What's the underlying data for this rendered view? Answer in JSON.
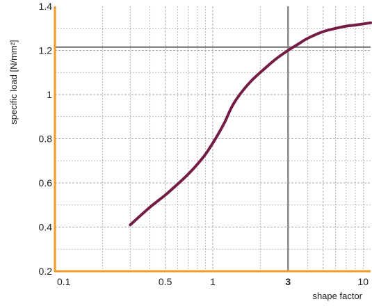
{
  "chart_data": {
    "type": "line",
    "xscale": "log",
    "yscale": "linear",
    "xlim": [
      0.1,
      10
    ],
    "ylim": [
      0.2,
      1.4
    ],
    "xlabel": "shape factor",
    "ylabel": "specific load [N/mm²]",
    "x_ticks": [
      {
        "value": 0.1,
        "label": "0.1",
        "bold": false
      },
      {
        "value": 0.5,
        "label": "0.5",
        "bold": false
      },
      {
        "value": 1,
        "label": "1",
        "bold": false
      },
      {
        "value": 3,
        "label": "3",
        "bold": true
      },
      {
        "value": 10,
        "label": "10",
        "bold": false
      }
    ],
    "y_ticks": [
      {
        "value": 0.2,
        "label": "0.2"
      },
      {
        "value": 0.4,
        "label": "0.4"
      },
      {
        "value": 0.6,
        "label": "0.6"
      },
      {
        "value": 0.8,
        "label": "0.8"
      },
      {
        "value": 1,
        "label": "1"
      },
      {
        "value": 1.2,
        "label": "1.2"
      },
      {
        "value": 1.4,
        "label": "1.4"
      }
    ],
    "grid": true,
    "reference_lines": {
      "x": 3,
      "y": 1.215
    },
    "series": [
      {
        "color": "#741c45",
        "x": [
          0.3,
          0.4,
          0.5,
          0.6,
          0.7,
          0.8,
          0.9,
          1.0,
          1.1,
          1.2,
          1.3,
          1.4,
          1.6,
          1.8,
          2.0,
          2.5,
          3.0,
          3.5,
          4.0,
          5.0,
          6.0,
          7.0,
          8.0,
          10.0
        ],
        "y": [
          0.41,
          0.49,
          0.545,
          0.595,
          0.64,
          0.685,
          0.73,
          0.78,
          0.83,
          0.88,
          0.935,
          0.975,
          1.03,
          1.07,
          1.1,
          1.16,
          1.2,
          1.23,
          1.255,
          1.285,
          1.3,
          1.31,
          1.315,
          1.325
        ]
      }
    ],
    "colors": {
      "axis": "#f29a28",
      "grid": "#a9a9a9",
      "reference": "#8a8a8a"
    }
  }
}
